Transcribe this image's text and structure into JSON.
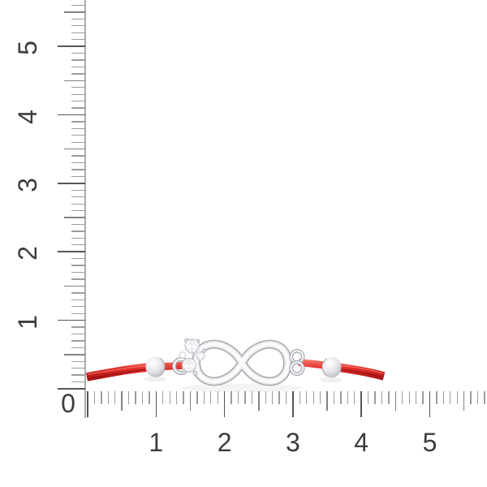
{
  "image": {
    "subject": "Red cord bracelet with silver infinity charm, crystal cluster and two silver beads, photographed on white with centimeter rulers",
    "background_color": "#ffffff"
  },
  "rulers": {
    "unit": "cm",
    "origin_label": "0",
    "vertical_labels": [
      "1",
      "2",
      "3",
      "4",
      "5"
    ],
    "horizontal_labels": [
      "1",
      "2",
      "3",
      "4",
      "5"
    ],
    "colors": {
      "minor_tick": "#9d9d9d",
      "medium_tick": "#828282",
      "major_tick": "#565656",
      "baseline": "#acacac",
      "label": "#3c3c3c"
    }
  },
  "bracelet": {
    "cord_color_main": "#e22d27",
    "cord_color_highlight": "#f9857c",
    "cord_color_shadow": "#9e0f0f",
    "cord_seam_color": "#8e1312",
    "metal_color_light": "#fbfbfc",
    "metal_color_mid": "#e8e8ec",
    "metal_color_dark": "#a8a8b0",
    "crystal_color": "#ffffff",
    "crystal_edge_color": "#c4c4cc"
  }
}
